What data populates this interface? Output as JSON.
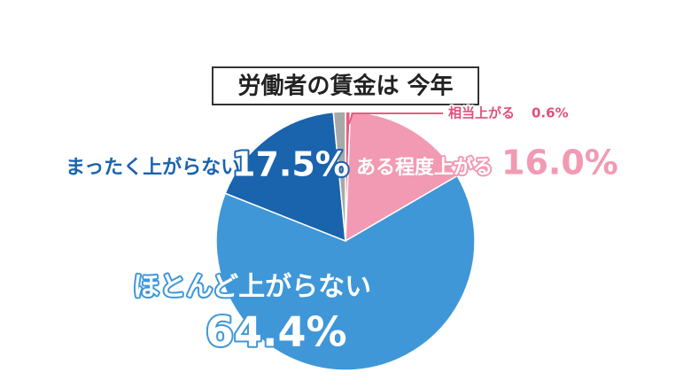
{
  "chart_data": {
    "type": "pie",
    "title": "労働者の賃金は 今年",
    "categories": [
      "相当上がる",
      "ある程度上がる",
      "ほとんど上がらない",
      "まったく上がらない",
      null
    ],
    "values": [
      0.6,
      16.0,
      64.4,
      17.5,
      1.5
    ],
    "value_labels": [
      "0.6%",
      "16.0%",
      "64.4%",
      "17.5%",
      null
    ],
    "colors": [
      "#e85c82",
      "#f29ab3",
      "#3f97d8",
      "#1a63ad",
      "#a8a8a8"
    ]
  }
}
